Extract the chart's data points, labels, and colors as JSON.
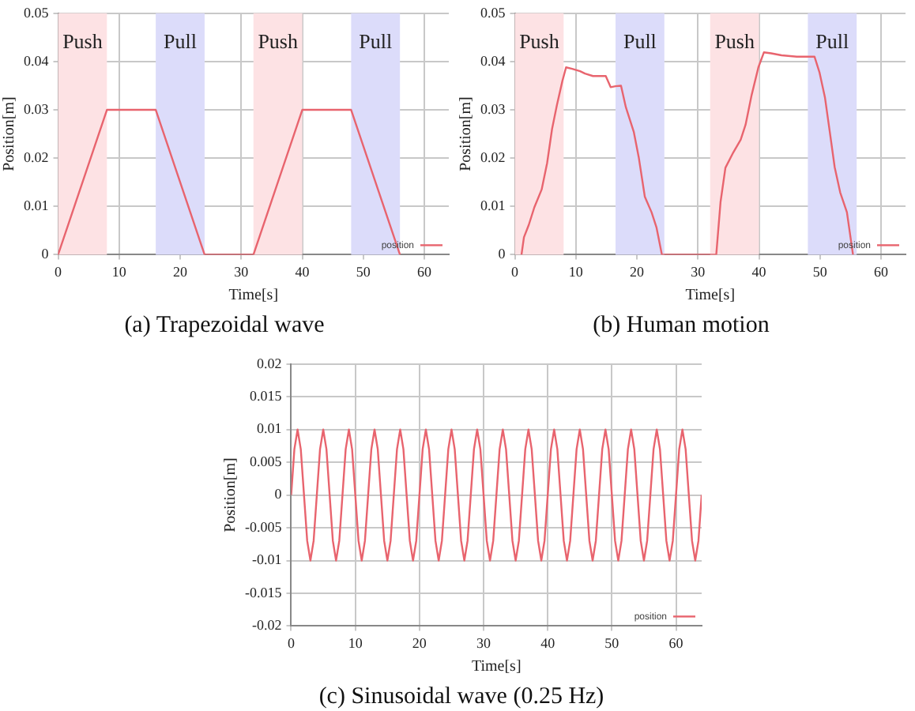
{
  "chart_data": [
    {
      "type": "line",
      "title": "(a) Trapezoidal wave",
      "xlabel": "Time[s]",
      "ylabel": "Position[m]",
      "xlim": [
        0,
        64
      ],
      "xticks": [
        0,
        10,
        20,
        30,
        40,
        50,
        60
      ],
      "ylim": [
        0,
        0.05
      ],
      "yticks": [
        0,
        0.01,
        0.02,
        0.03,
        0.04,
        0.05
      ],
      "grid": true,
      "legend": "bottom right",
      "marker": "none",
      "bands": [
        {
          "axis": "x",
          "from": 0,
          "to": 8,
          "label": "Push",
          "color": "#fde2e4"
        },
        {
          "axis": "x",
          "from": 16,
          "to": 24,
          "label": "Pull",
          "color": "#dcdcfa"
        },
        {
          "axis": "x",
          "from": 32,
          "to": 40,
          "label": "Push",
          "color": "#fde2e4"
        },
        {
          "axis": "x",
          "from": 48,
          "to": 56,
          "label": "Pull",
          "color": "#dcdcfa"
        }
      ],
      "series": [
        {
          "name": "position",
          "color": "#e8646e",
          "x": [
            0,
            8,
            16,
            24,
            32,
            40,
            48,
            56
          ],
          "values": [
            0,
            0.03,
            0.03,
            0,
            0,
            0.03,
            0.03,
            0
          ]
        }
      ]
    },
    {
      "type": "line",
      "title": "(b) Human motion",
      "xlabel": "Time[s]",
      "ylabel": "Position[m]",
      "xlim": [
        0,
        64
      ],
      "xticks": [
        0,
        10,
        20,
        30,
        40,
        50,
        60
      ],
      "ylim": [
        0,
        0.05
      ],
      "yticks": [
        0,
        0.01,
        0.02,
        0.03,
        0.04,
        0.05
      ],
      "grid": true,
      "legend": "bottom right",
      "marker": "none",
      "bands": [
        {
          "axis": "x",
          "from": 0,
          "to": 8,
          "label": "Push",
          "color": "#fde2e4"
        },
        {
          "axis": "x",
          "from": 16.5,
          "to": 24.5,
          "label": "Pull",
          "color": "#dcdcfa"
        },
        {
          "axis": "x",
          "from": 32,
          "to": 40,
          "label": "Push",
          "color": "#fde2e4"
        },
        {
          "axis": "x",
          "from": 48,
          "to": 56,
          "label": "Pull",
          "color": "#dcdcfa"
        }
      ],
      "series": [
        {
          "name": "position",
          "color": "#e8646e",
          "x": [
            1.1,
            1.5,
            2.3,
            3.2,
            4.4,
            5.3,
            6.1,
            6.9,
            7.8,
            8.4,
            9.4,
            10.7,
            11.5,
            12.8,
            14.9,
            15.7,
            16.5,
            17.4,
            18.2,
            19.5,
            20.3,
            21.3,
            22.4,
            23.2,
            24.1,
            33.0,
            33.7,
            34.5,
            35.8,
            37.0,
            37.8,
            38.8,
            39.9,
            40.8,
            42.0,
            43.7,
            46.2,
            49.1,
            49.9,
            50.8,
            51.6,
            52.4,
            53.3,
            54.4,
            55.4
          ],
          "values": [
            0,
            0.0036,
            0.0062,
            0.0098,
            0.0135,
            0.019,
            0.026,
            0.031,
            0.036,
            0.0388,
            0.0385,
            0.038,
            0.0375,
            0.037,
            0.037,
            0.0347,
            0.0349,
            0.035,
            0.0305,
            0.0254,
            0.0202,
            0.012,
            0.0088,
            0.0057,
            0,
            0,
            0.0109,
            0.018,
            0.0212,
            0.0238,
            0.0269,
            0.0331,
            0.0388,
            0.0419,
            0.0417,
            0.0413,
            0.041,
            0.041,
            0.0378,
            0.0326,
            0.0254,
            0.0181,
            0.0129,
            0.0088,
            0
          ]
        }
      ]
    },
    {
      "type": "line",
      "title": "(c) Sinusoidal wave (0.25 Hz)",
      "xlabel": "Time[s]",
      "ylabel": "Position[m]",
      "xlim": [
        0,
        64
      ],
      "xticks": [
        0,
        10,
        20,
        30,
        40,
        50,
        60
      ],
      "ylim": [
        -0.02,
        0.02
      ],
      "yticks": [
        -0.02,
        -0.015,
        -0.01,
        -0.005,
        0,
        0.005,
        0.01,
        0.015,
        0.02
      ],
      "grid": true,
      "legend": "bottom right",
      "marker": "none",
      "series": [
        {
          "name": "position",
          "color": "#e8646e",
          "x": [
            0,
            0.5,
            1,
            1.5,
            2,
            2.5,
            3,
            3.5,
            4,
            4.5,
            5,
            5.5,
            6,
            6.5,
            7,
            7.5,
            8,
            8.5,
            9,
            9.5,
            10,
            10.5,
            11,
            11.5,
            12,
            12.5,
            13,
            13.5,
            14,
            14.5,
            15,
            15.5,
            16,
            16.5,
            17,
            17.5,
            18,
            18.5,
            19,
            19.5,
            20,
            20.5,
            21,
            21.5,
            22,
            22.5,
            23,
            23.5,
            24,
            24.5,
            25,
            25.5,
            26,
            26.5,
            27,
            27.5,
            28,
            28.5,
            29,
            29.5,
            30,
            30.5,
            31,
            31.5,
            32,
            32.5,
            33,
            33.5,
            34,
            34.5,
            35,
            35.5,
            36,
            36.5,
            37,
            37.5,
            38,
            38.5,
            39,
            39.5,
            40,
            40.5,
            41,
            41.5,
            42,
            42.5,
            43,
            43.5,
            44,
            44.5,
            45,
            45.5,
            46,
            46.5,
            47,
            47.5,
            48,
            48.5,
            49,
            49.5,
            50,
            50.5,
            51,
            51.5,
            52,
            52.5,
            53,
            53.5,
            54,
            54.5,
            55,
            55.5,
            56,
            56.5,
            57,
            57.5,
            58,
            58.5,
            59,
            59.5,
            60,
            60.5,
            61,
            61.5,
            62,
            62.5,
            63,
            63.5,
            64
          ],
          "values": [
            0,
            0.007,
            0.01,
            0.007,
            0,
            -0.007,
            -0.01,
            -0.007,
            0,
            0.007,
            0.01,
            0.007,
            0,
            -0.007,
            -0.01,
            -0.007,
            0,
            0.007,
            0.01,
            0.007,
            0,
            -0.007,
            -0.01,
            -0.007,
            0,
            0.007,
            0.01,
            0.007,
            0,
            -0.007,
            -0.01,
            -0.007,
            0,
            0.007,
            0.01,
            0.007,
            0,
            -0.007,
            -0.01,
            -0.007,
            0,
            0.007,
            0.01,
            0.007,
            0,
            -0.007,
            -0.01,
            -0.007,
            0,
            0.007,
            0.01,
            0.007,
            0,
            -0.007,
            -0.01,
            -0.007,
            0,
            0.007,
            0.01,
            0.007,
            0,
            -0.007,
            -0.01,
            -0.007,
            0,
            0.007,
            0.01,
            0.007,
            0,
            -0.007,
            -0.01,
            -0.007,
            0,
            0.007,
            0.01,
            0.007,
            0,
            -0.007,
            -0.01,
            -0.007,
            0,
            0.007,
            0.01,
            0.007,
            0,
            -0.007,
            -0.01,
            -0.007,
            0,
            0.007,
            0.01,
            0.007,
            0,
            -0.007,
            -0.01,
            -0.007,
            0,
            0.007,
            0.01,
            0.007,
            0,
            -0.007,
            -0.01,
            -0.007,
            0,
            0.007,
            0.01,
            0.007,
            0,
            -0.007,
            -0.01,
            -0.007,
            0,
            0.007,
            0.01,
            0.007,
            0,
            -0.007,
            -0.01,
            -0.007,
            0,
            0.007,
            0.01,
            0.007,
            0,
            -0.007,
            -0.01,
            -0.007,
            0
          ]
        }
      ]
    }
  ]
}
